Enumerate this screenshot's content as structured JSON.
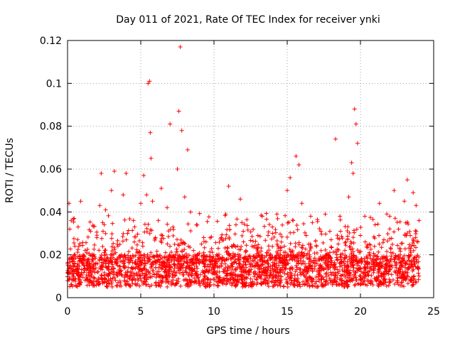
{
  "chart_data": {
    "type": "scatter",
    "title": "Day 011 of 2021, Rate Of TEC Index for receiver ynki",
    "xlabel": "GPS time / hours",
    "ylabel": "ROTI / TECUs",
    "xlim": [
      0,
      25
    ],
    "ylim": [
      0,
      0.12
    ],
    "xticks": [
      0,
      5,
      10,
      15,
      20,
      25
    ],
    "xtick_labels": [
      "0",
      "5",
      "10",
      "15",
      "20",
      "25"
    ],
    "yticks": [
      0,
      0.02,
      0.04,
      0.06,
      0.08,
      0.1,
      0.12
    ],
    "ytick_labels": [
      "0",
      "0.02",
      "0.04",
      "0.06",
      "0.08",
      "0.1",
      "0.12"
    ],
    "grid": true,
    "marker": "plus",
    "series": [
      {
        "name": "ROTI",
        "color": "#ff0000",
        "x": [
          0.05,
          0.1,
          0.15,
          0.2,
          0.25,
          0.3,
          0.4,
          0.5,
          0.7,
          0.9,
          1.0,
          1.2,
          1.5,
          1.8,
          2.0,
          2.2,
          2.3,
          2.4,
          2.5,
          2.6,
          2.8,
          3.0,
          3.2,
          3.4,
          3.6,
          3.8,
          4.0,
          4.1,
          4.3,
          4.5,
          4.8,
          5.0,
          5.2,
          5.4,
          5.5,
          5.6,
          5.65,
          5.7,
          5.8,
          6.0,
          6.2,
          6.4,
          6.6,
          6.8,
          7.0,
          7.2,
          7.5,
          7.6,
          7.7,
          7.8,
          8.0,
          8.2,
          8.4,
          8.6,
          8.8,
          9.0,
          9.3,
          9.6,
          10.0,
          10.2,
          10.5,
          10.8,
          11.0,
          11.2,
          11.5,
          11.8,
          12.0,
          12.3,
          12.6,
          13.0,
          13.3,
          13.6,
          14.0,
          14.3,
          14.6,
          15.0,
          15.2,
          15.4,
          15.6,
          15.8,
          16.0,
          16.3,
          16.6,
          17.0,
          17.3,
          17.6,
          18.0,
          18.3,
          18.6,
          19.0,
          19.2,
          19.4,
          19.5,
          19.6,
          19.7,
          19.8,
          20.0,
          20.3,
          20.6,
          21.0,
          21.3,
          21.6,
          22.0,
          22.3,
          22.6,
          23.0,
          23.2,
          23.4,
          23.6,
          23.8,
          24.0
        ],
        "y": [
          0.012,
          0.044,
          0.032,
          0.015,
          0.036,
          0.011,
          0.018,
          0.024,
          0.013,
          0.045,
          0.016,
          0.022,
          0.014,
          0.02,
          0.028,
          0.043,
          0.058,
          0.035,
          0.021,
          0.041,
          0.016,
          0.05,
          0.059,
          0.025,
          0.017,
          0.048,
          0.058,
          0.03,
          0.019,
          0.036,
          0.021,
          0.044,
          0.057,
          0.048,
          0.1,
          0.101,
          0.077,
          0.065,
          0.045,
          0.028,
          0.036,
          0.051,
          0.019,
          0.042,
          0.081,
          0.033,
          0.06,
          0.087,
          0.117,
          0.078,
          0.047,
          0.069,
          0.04,
          0.022,
          0.034,
          0.016,
          0.028,
          0.012,
          0.006,
          0.02,
          0.028,
          0.039,
          0.052,
          0.024,
          0.034,
          0.046,
          0.031,
          0.018,
          0.024,
          0.029,
          0.038,
          0.021,
          0.03,
          0.039,
          0.026,
          0.05,
          0.056,
          0.036,
          0.066,
          0.062,
          0.044,
          0.029,
          0.038,
          0.024,
          0.031,
          0.039,
          0.027,
          0.074,
          0.038,
          0.026,
          0.047,
          0.063,
          0.058,
          0.088,
          0.081,
          0.072,
          0.029,
          0.038,
          0.021,
          0.034,
          0.044,
          0.027,
          0.038,
          0.05,
          0.032,
          0.045,
          0.055,
          0.029,
          0.049,
          0.043,
          0.036
        ]
      }
    ],
    "background_band": {
      "y_min": 0.005,
      "y_max": 0.02,
      "description": "dense cloud of points across the full time range"
    }
  }
}
